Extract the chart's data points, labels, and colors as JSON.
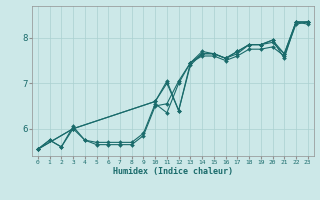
{
  "xlabel": "Humidex (Indice chaleur)",
  "ylabel": "",
  "xlim": [
    -0.5,
    23.5
  ],
  "ylim": [
    5.4,
    8.7
  ],
  "yticks": [
    6,
    7,
    8
  ],
  "xticks": [
    0,
    1,
    2,
    3,
    4,
    5,
    6,
    7,
    8,
    9,
    10,
    11,
    12,
    13,
    14,
    15,
    16,
    17,
    18,
    19,
    20,
    21,
    22,
    23
  ],
  "background_color": "#cce8e8",
  "plot_bg_color": "#cce8e8",
  "grid_color": "#aad0d0",
  "line_color": "#1a6b6b",
  "lines": [
    {
      "x": [
        0,
        1,
        2,
        3,
        4,
        5,
        6,
        7,
        8,
        9,
        10,
        11,
        12,
        13,
        14,
        15,
        16,
        17,
        18,
        19,
        20,
        21,
        22,
        23
      ],
      "y": [
        5.55,
        5.75,
        5.6,
        6.0,
        5.75,
        5.65,
        5.65,
        5.65,
        5.65,
        5.85,
        6.5,
        6.55,
        7.05,
        7.45,
        7.6,
        7.6,
        7.5,
        7.6,
        7.75,
        7.75,
        7.8,
        7.6,
        8.3,
        8.35
      ]
    },
    {
      "x": [
        0,
        1,
        2,
        3,
        4,
        5,
        6,
        7,
        8,
        9,
        10,
        11,
        12,
        13,
        14,
        15,
        16,
        17,
        18,
        19,
        20,
        21,
        22,
        23
      ],
      "y": [
        5.55,
        5.75,
        5.6,
        6.05,
        5.75,
        5.7,
        5.7,
        5.7,
        5.7,
        5.9,
        6.55,
        6.35,
        7.0,
        7.45,
        7.65,
        7.65,
        7.55,
        7.65,
        7.85,
        7.85,
        7.9,
        7.65,
        8.35,
        8.3
      ]
    },
    {
      "x": [
        0,
        3,
        10,
        11,
        12,
        13,
        14,
        15,
        16,
        17,
        18,
        19,
        20,
        21,
        22,
        23
      ],
      "y": [
        5.55,
        6.0,
        6.6,
        7.0,
        6.4,
        7.4,
        7.65,
        7.65,
        7.55,
        7.7,
        7.85,
        7.85,
        7.95,
        7.55,
        8.35,
        8.35
      ]
    },
    {
      "x": [
        0,
        3,
        10,
        11,
        12,
        13,
        14,
        15,
        16,
        17,
        18,
        19,
        20,
        21,
        22,
        23
      ],
      "y": [
        5.55,
        6.0,
        6.6,
        7.05,
        6.4,
        7.45,
        7.7,
        7.65,
        7.55,
        7.7,
        7.85,
        7.85,
        7.95,
        7.65,
        8.35,
        8.35
      ]
    }
  ]
}
